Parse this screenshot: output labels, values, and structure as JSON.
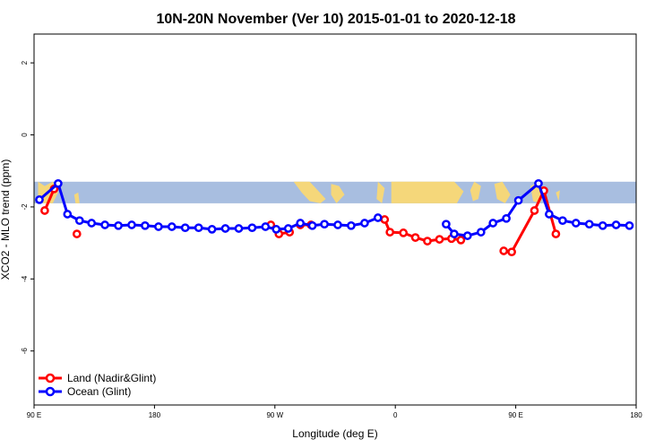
{
  "chart_data": {
    "type": "line",
    "title": "10N-20N November (Ver 10)   2015-01-01 to 2020-12-18",
    "xlabel": "Longitude (deg E)",
    "ylabel": "XCO2 - MLO trend (ppm)",
    "xlim": [
      90,
      540
    ],
    "ylim": [
      -7.5,
      2.8
    ],
    "x_ticks": [
      {
        "value": 90,
        "label": "90 E"
      },
      {
        "value": 180,
        "label": "180"
      },
      {
        "value": 270,
        "label": "90 W"
      },
      {
        "value": 360,
        "label": "0"
      },
      {
        "value": 450,
        "label": "90 E"
      },
      {
        "value": 540,
        "label": "180"
      }
    ],
    "y_ticks": [
      {
        "value": 2,
        "label": "2"
      },
      {
        "value": 0,
        "label": "0"
      },
      {
        "value": -2,
        "label": "-2"
      },
      {
        "value": -4,
        "label": "-4"
      },
      {
        "value": -6,
        "label": "-6"
      }
    ],
    "map_band": {
      "y_top": -1.3,
      "y_bottom": -1.9,
      "ocean_color": "#a8bee0",
      "land_color": "#f5d77a"
    },
    "series": [
      {
        "name": "Land (Nadir&Glint)",
        "color": "#ff0000",
        "segments": [
          [
            [
              98,
              -2.1
            ],
            [
              105,
              -1.5
            ]
          ],
          [
            [
              122,
              -2.75
            ]
          ],
          [
            [
              267,
              -2.5
            ]
          ],
          [
            [
              273,
              -2.75
            ],
            [
              281,
              -2.7
            ]
          ],
          [
            [
              289,
              -2.5
            ],
            [
              297,
              -2.5
            ]
          ],
          [
            [
              352,
              -2.35
            ],
            [
              356,
              -2.7
            ],
            [
              366,
              -2.72
            ],
            [
              375,
              -2.85
            ],
            [
              384,
              -2.95
            ],
            [
              393,
              -2.9
            ],
            [
              402,
              -2.88
            ],
            [
              409,
              -2.92
            ]
          ],
          [
            [
              441,
              -3.22
            ],
            [
              447,
              -3.25
            ],
            [
              464,
              -2.1
            ],
            [
              471,
              -1.55
            ],
            [
              480,
              -2.75
            ]
          ]
        ]
      },
      {
        "name": "Ocean (Glint)",
        "color": "#0000ff",
        "segments": [
          [
            [
              94,
              -1.8
            ],
            [
              108,
              -1.35
            ],
            [
              115,
              -2.2
            ],
            [
              124,
              -2.38
            ],
            [
              133,
              -2.45
            ],
            [
              143,
              -2.5
            ],
            [
              153,
              -2.52
            ],
            [
              163,
              -2.5
            ],
            [
              173,
              -2.52
            ],
            [
              183,
              -2.55
            ],
            [
              193,
              -2.55
            ],
            [
              203,
              -2.58
            ],
            [
              213,
              -2.58
            ],
            [
              223,
              -2.62
            ],
            [
              233,
              -2.6
            ],
            [
              243,
              -2.6
            ],
            [
              253,
              -2.58
            ],
            [
              263,
              -2.55
            ],
            [
              271,
              -2.62
            ],
            [
              280,
              -2.6
            ],
            [
              289,
              -2.45
            ],
            [
              298,
              -2.52
            ],
            [
              307,
              -2.48
            ],
            [
              317,
              -2.5
            ],
            [
              327,
              -2.52
            ],
            [
              337,
              -2.45
            ],
            [
              347,
              -2.3
            ]
          ],
          [
            [
              398,
              -2.48
            ],
            [
              404,
              -2.75
            ],
            [
              414,
              -2.8
            ],
            [
              424,
              -2.7
            ],
            [
              433,
              -2.45
            ],
            [
              443,
              -2.32
            ],
            [
              452,
              -1.82
            ],
            [
              467,
              -1.35
            ],
            [
              475,
              -2.2
            ],
            [
              485,
              -2.38
            ],
            [
              495,
              -2.45
            ],
            [
              505,
              -2.48
            ],
            [
              515,
              -2.52
            ],
            [
              525,
              -2.5
            ],
            [
              535,
              -2.52
            ]
          ]
        ]
      }
    ],
    "legend": {
      "position": "bottom-left"
    }
  }
}
